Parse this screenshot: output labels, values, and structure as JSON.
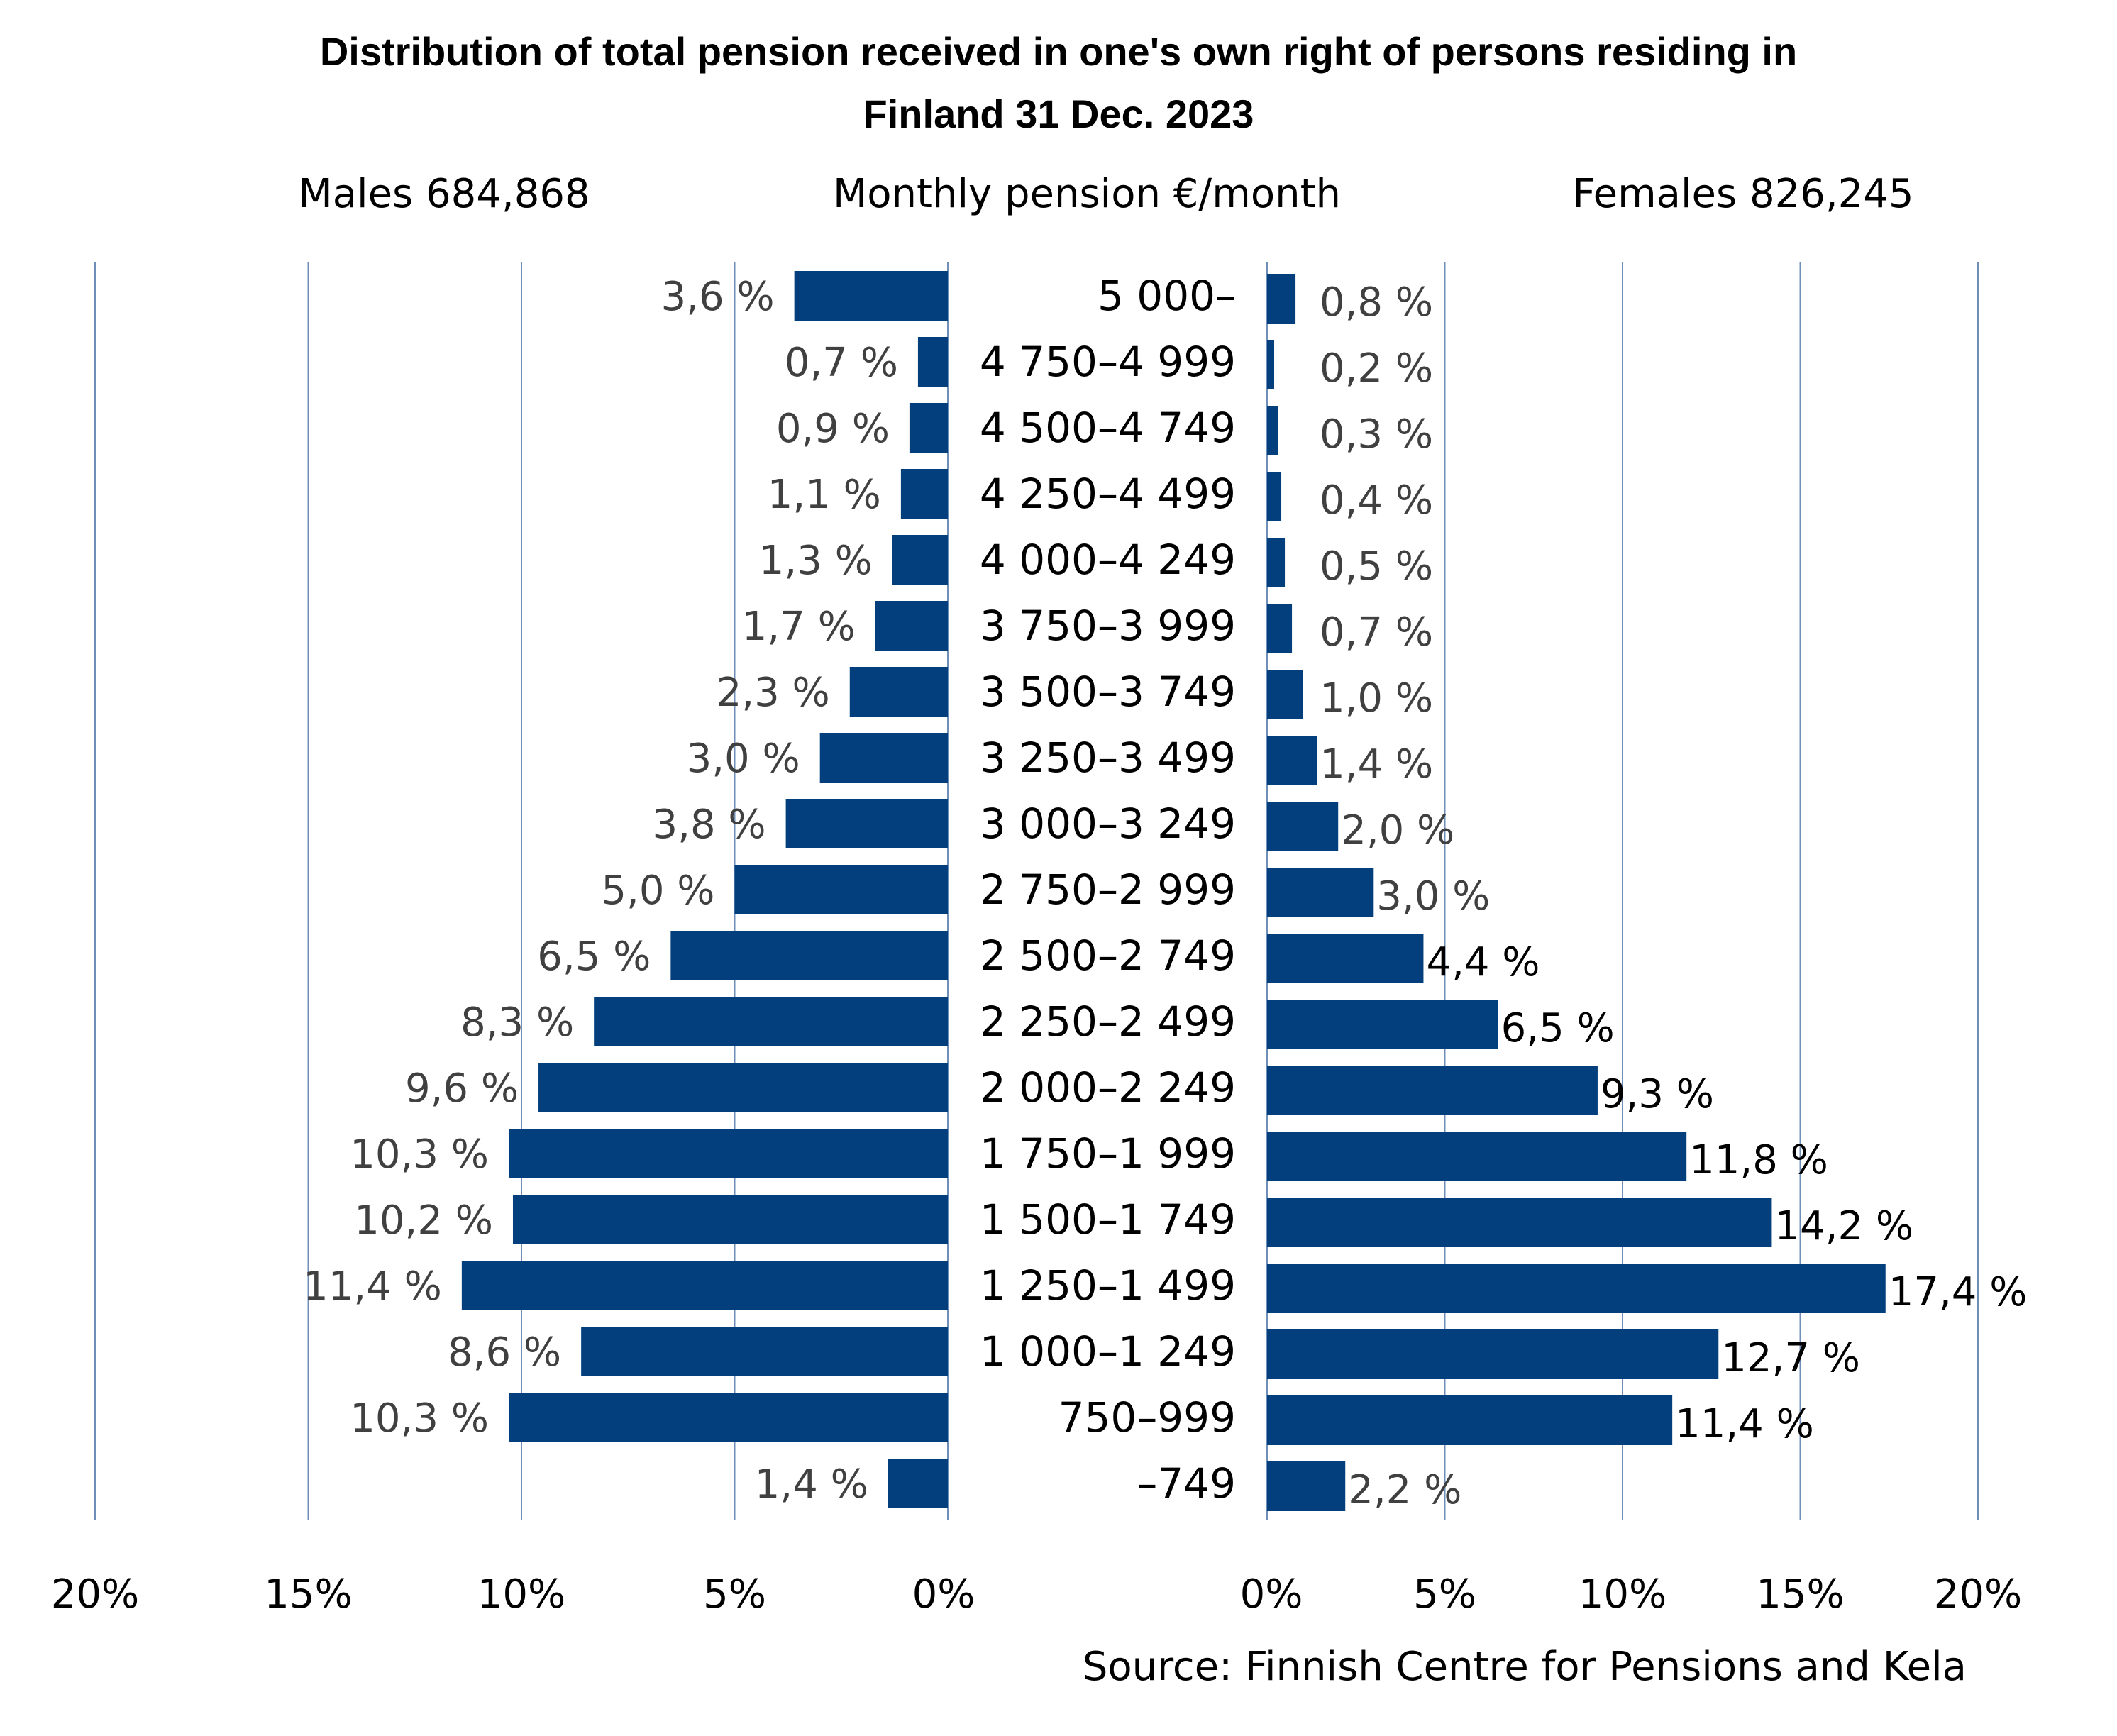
{
  "chart_data": {
    "type": "bar",
    "title_line1": "Distribution of total pension received in one's own right of persons residing in",
    "title_line2": "Finland 31 Dec. 2023",
    "left_header": "Males 684,868",
    "center_header": "Monthly pension €/month",
    "right_header": "Females 826,245",
    "source": "Source: Finnish Centre for Pensions and Kela",
    "categories": [
      "5 000–",
      "4 750–4 999",
      "4 500–4 749",
      "4 250–4 499",
      "4 000–4 249",
      "3 750–3 999",
      "3 500–3 749",
      "3 250–3 499",
      "3 000–3 249",
      "2 750–2 999",
      "2 500–2 749",
      "2 250–2 499",
      "2 000–2 249",
      "1 750–1 999",
      "1 500–1 749",
      "1 250–1 499",
      "1 000–1 249",
      "750–999",
      "–749"
    ],
    "series": [
      {
        "name": "Males 684,868",
        "values": [
          3.6,
          0.7,
          0.9,
          1.1,
          1.3,
          1.7,
          2.3,
          3.0,
          3.8,
          5.0,
          6.5,
          8.3,
          9.6,
          10.3,
          10.2,
          11.4,
          8.6,
          10.3,
          1.4
        ],
        "labels": [
          "3,6 %",
          "0,7 %",
          "0,9 %",
          "1,1 %",
          "1,3 %",
          "1,7 %",
          "2,3 %",
          "3,0 %",
          "3,8 %",
          "5,0 %",
          "6,5 %",
          "8,3 %",
          "9,6 %",
          "10,3 %",
          "10,2 %",
          "11,4 %",
          "8,6 %",
          "10,3 %",
          "1,4 %"
        ]
      },
      {
        "name": "Females 826,245",
        "values": [
          0.8,
          0.2,
          0.3,
          0.4,
          0.5,
          0.7,
          1.0,
          1.4,
          2.0,
          3.0,
          4.4,
          6.5,
          9.3,
          11.8,
          14.2,
          17.4,
          12.7,
          11.4,
          2.2
        ],
        "labels": [
          "0,8 %",
          "0,2 %",
          "0,3 %",
          "0,4 %",
          "0,5 %",
          "0,7 %",
          "1,0 %",
          "1,4 %",
          "2,0 %",
          "3,0 %",
          "4,4 %",
          "6,5 %",
          "9,3 %",
          "11,8 %",
          "14,2 %",
          "17,4 %",
          "12,7 %",
          "11,4 %",
          "2,2 %"
        ]
      }
    ],
    "xlim": [
      0,
      20
    ],
    "x_ticks": [
      0,
      5,
      10,
      15,
      20
    ],
    "x_tick_labels": [
      "0%",
      "5%",
      "10%",
      "15%",
      "20%"
    ],
    "grid": true,
    "bar_color": "#023F7C",
    "grid_color": "#6F8FB8",
    "label_color_dark": "#404040",
    "label_color_black": "#000000"
  }
}
